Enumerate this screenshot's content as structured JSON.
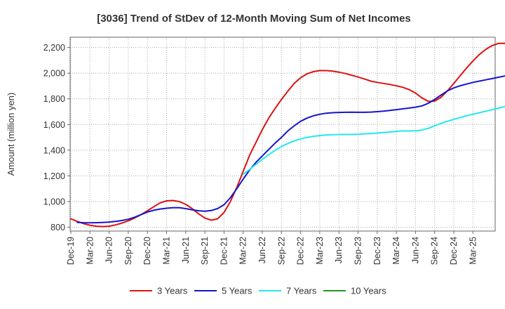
{
  "chart_data": {
    "type": "line",
    "title": "[3036]  Trend of StDev of 12-Month Moving Sum of Net Incomes",
    "ylabel": "Amount (million yen)",
    "xlabel": "",
    "ylim": [
      770,
      2280
    ],
    "yticks": [
      800,
      1000,
      1200,
      1400,
      1600,
      1800,
      2000,
      2200
    ],
    "ytick_labels": [
      "800",
      "1,000",
      "1,200",
      "1,400",
      "1,600",
      "1,800",
      "2,000",
      "2,200"
    ],
    "x_tick_labels": [
      "Dec-19",
      "Mar-20",
      "Jun-20",
      "Sep-20",
      "Dec-20",
      "Mar-21",
      "Jun-21",
      "Sep-21",
      "Dec-21",
      "Mar-22",
      "Jun-22",
      "Sep-22",
      "Dec-22",
      "Mar-23",
      "Jun-23",
      "Sep-23",
      "Dec-23",
      "Mar-24",
      "Jun-24",
      "Sep-24",
      "Dec-24",
      "Mar-25"
    ],
    "grid": true,
    "legend_position": "bottom",
    "series": [
      {
        "name": "3 Years",
        "color": "#dd1111",
        "start_month_index": 0,
        "values": [
          865,
          845,
          828,
          815,
          808,
          805,
          808,
          818,
          832,
          850,
          872,
          898,
          928,
          960,
          990,
          1005,
          1008,
          1000,
          978,
          945,
          905,
          872,
          855,
          865,
          915,
          1000,
          1110,
          1235,
          1360,
          1460,
          1560,
          1650,
          1725,
          1795,
          1860,
          1920,
          1965,
          1995,
          2012,
          2020,
          2020,
          2016,
          2008,
          1997,
          1984,
          1970,
          1955,
          1938,
          1928,
          1920,
          1912,
          1902,
          1890,
          1872,
          1845,
          1808,
          1780,
          1782,
          1812,
          1862,
          1920,
          1980,
          2040,
          2095,
          2145,
          2185,
          2215,
          2232,
          2232,
          2208
        ]
      },
      {
        "name": "5 Years",
        "color": "#1515cc",
        "start_month_index": 1,
        "values": [
          838,
          835,
          834,
          835,
          837,
          840,
          845,
          852,
          862,
          878,
          898,
          918,
          932,
          942,
          948,
          952,
          952,
          945,
          935,
          928,
          925,
          930,
          945,
          975,
          1030,
          1100,
          1175,
          1245,
          1305,
          1355,
          1405,
          1455,
          1500,
          1550,
          1590,
          1625,
          1650,
          1668,
          1680,
          1688,
          1692,
          1694,
          1695,
          1696,
          1695,
          1695,
          1697,
          1700,
          1704,
          1710,
          1716,
          1722,
          1728,
          1735,
          1745,
          1765,
          1795,
          1830,
          1862,
          1885,
          1902,
          1915,
          1928,
          1938,
          1948,
          1958,
          1968,
          1978,
          1988
        ]
      },
      {
        "name": "7 Years",
        "color": "#22e8ee",
        "start_month_index": 27,
        "values": [
          1212,
          1250,
          1290,
          1328,
          1365,
          1398,
          1428,
          1452,
          1472,
          1488,
          1500,
          1508,
          1514,
          1518,
          1520,
          1522,
          1522,
          1523,
          1524,
          1527,
          1530,
          1533,
          1537,
          1542,
          1546,
          1550,
          1550,
          1550,
          1557,
          1570,
          1590,
          1608,
          1625,
          1640,
          1655,
          1668,
          1680,
          1692,
          1704,
          1715,
          1728,
          1740
        ]
      },
      {
        "name": "10 Years",
        "color": "#229922",
        "start_month_index": 0,
        "values": []
      }
    ]
  }
}
